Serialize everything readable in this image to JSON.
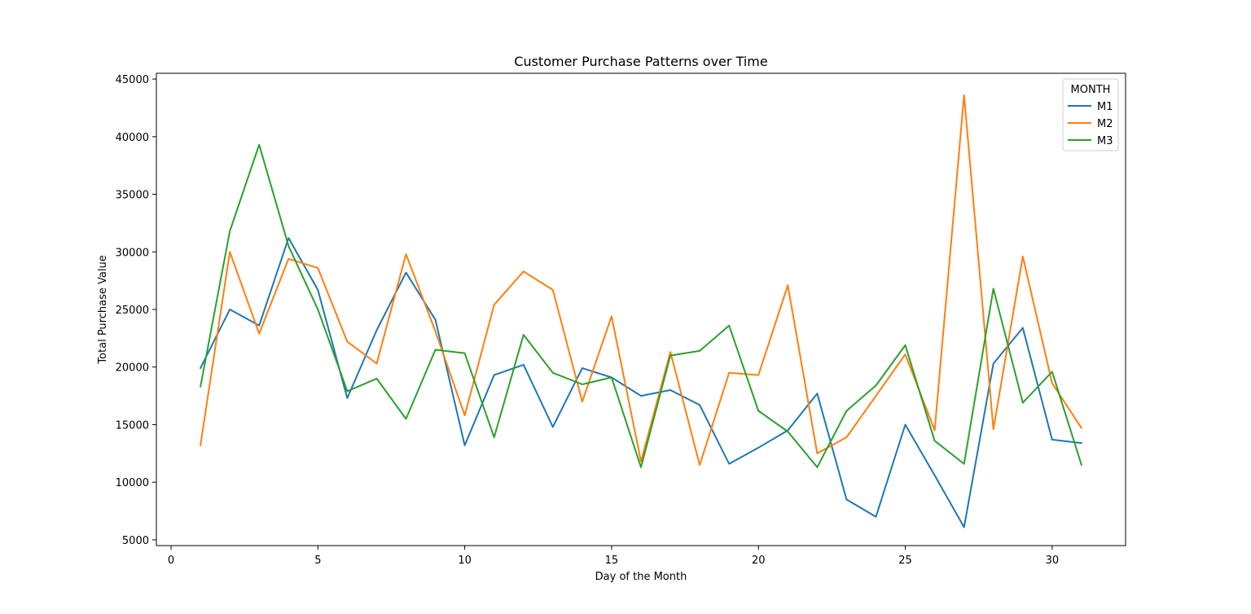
{
  "chart_data": {
    "type": "line",
    "title": "Customer Purchase Patterns over Time",
    "xlabel": "Day of the Month",
    "ylabel": "Total Purchase Value",
    "xlim": [
      -0.5,
      32.5
    ],
    "ylim": [
      4500,
      45500
    ],
    "xticks": [
      0,
      5,
      10,
      15,
      20,
      25,
      30
    ],
    "yticks": [
      5000,
      10000,
      15000,
      20000,
      25000,
      30000,
      35000,
      40000,
      45000
    ],
    "grid": false,
    "legend": {
      "title": "MONTH",
      "placement": "top-right"
    },
    "x": [
      1,
      2,
      3,
      4,
      5,
      6,
      7,
      8,
      9,
      10,
      11,
      12,
      13,
      14,
      15,
      16,
      17,
      18,
      19,
      20,
      21,
      22,
      23,
      24,
      25,
      26,
      27,
      28,
      29,
      30,
      31
    ],
    "series": [
      {
        "name": "M1",
        "color": "#1f77b4",
        "values": [
          19900,
          25000,
          23600,
          31200,
          26700,
          17300,
          23200,
          28200,
          24100,
          13200,
          19300,
          20200,
          14800,
          19900,
          19100,
          17500,
          18000,
          16700,
          11600,
          13000,
          14500,
          17700,
          8500,
          7000,
          15000,
          10600,
          6100,
          20300,
          23400,
          13700,
          13400
        ]
      },
      {
        "name": "M2",
        "color": "#ff7f0e",
        "values": [
          13200,
          30000,
          22900,
          29400,
          28600,
          22200,
          20300,
          29800,
          23100,
          15800,
          25400,
          28300,
          26700,
          17000,
          24400,
          11800,
          21300,
          11500,
          19500,
          19300,
          27100,
          12500,
          13900,
          17500,
          21100,
          14500,
          43600,
          14600,
          29600,
          18600,
          14700
        ]
      },
      {
        "name": "M3",
        "color": "#2ca02c",
        "values": [
          18300,
          31800,
          39300,
          30500,
          25000,
          17900,
          19000,
          15500,
          21500,
          21200,
          13900,
          22800,
          19500,
          18500,
          19100,
          11300,
          21000,
          21400,
          23600,
          16200,
          14400,
          11300,
          16200,
          18400,
          21900,
          13600,
          11600,
          26800,
          16900,
          19600,
          11500
        ]
      }
    ]
  }
}
